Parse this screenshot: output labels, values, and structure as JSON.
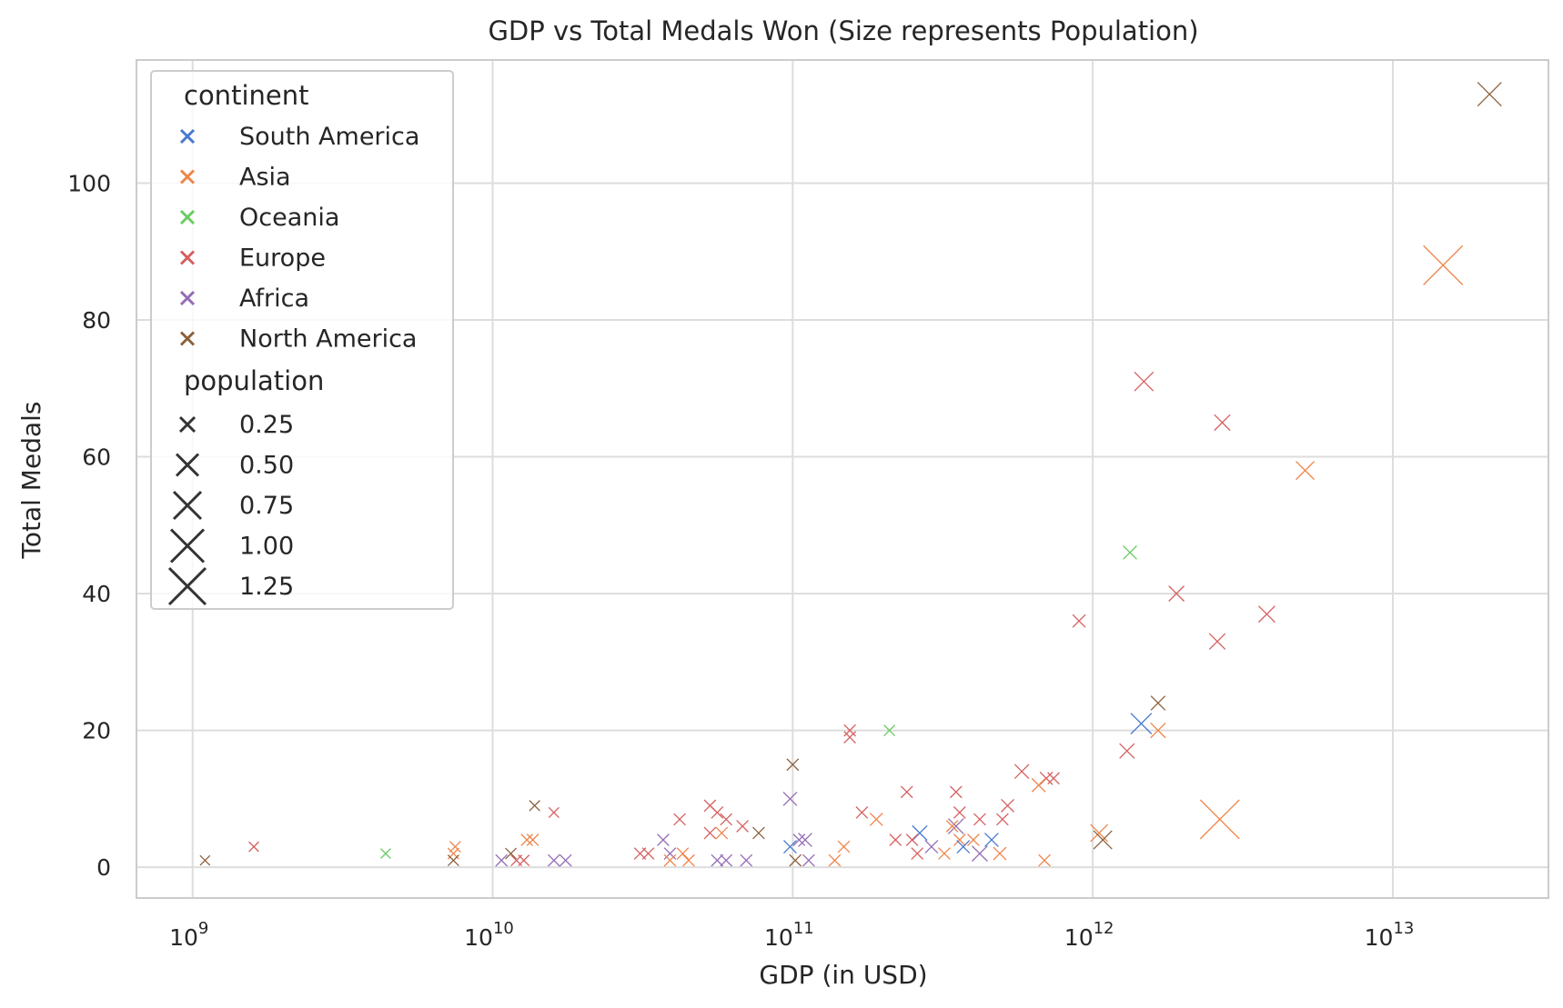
{
  "chart_data": {
    "type": "scatter",
    "title": "GDP vs Total Medals Won (Size represents Population)",
    "xlabel": "GDP (in USD)",
    "ylabel": "Total Medals",
    "xscale": "log",
    "xlim": [
      650000000.0,
      33000000000000.0
    ],
    "ylim": [
      -4.5,
      118
    ],
    "x_ticks": [
      {
        "value": 1000000000.0,
        "base": "10",
        "exp": "9"
      },
      {
        "value": 10000000000.0,
        "base": "10",
        "exp": "10"
      },
      {
        "value": 100000000000.0,
        "base": "10",
        "exp": "11"
      },
      {
        "value": 1000000000000.0,
        "base": "10",
        "exp": "12"
      },
      {
        "value": 10000000000000.0,
        "base": "10",
        "exp": "13"
      }
    ],
    "y_ticks": [
      "0",
      "20",
      "40",
      "60",
      "80",
      "100"
    ],
    "grid": true,
    "marker": "x",
    "legend_placement": "upper-left",
    "hue_legend_title": "continent",
    "size_legend_title": "population",
    "continent_colors": {
      "South America": "#4878d0",
      "Asia": "#ee854a",
      "Oceania": "#6acc64",
      "Europe": "#d65f5f",
      "Africa": "#956cb4",
      "North America": "#8c613c"
    },
    "continents": [
      "South America",
      "Asia",
      "Oceania",
      "Europe",
      "Africa",
      "North America"
    ],
    "size_legend": [
      {
        "label": "0.25",
        "value": 0.25
      },
      {
        "label": "0.50",
        "value": 0.5
      },
      {
        "label": "0.75",
        "value": 0.75
      },
      {
        "label": "1.00",
        "value": 1.0
      },
      {
        "label": "1.25",
        "value": 1.25
      }
    ],
    "points": [
      {
        "gdp": 21000000000000.0,
        "medals": 113,
        "continent": "North America",
        "population": 0.33
      },
      {
        "gdp": 14700000000000.0,
        "medals": 88,
        "continent": "Asia",
        "population": 1.4
      },
      {
        "gdp": 1480000000000.0,
        "medals": 71,
        "continent": "Europe",
        "population": 0.15
      },
      {
        "gdp": 2700000000000.0,
        "medals": 65,
        "continent": "Europe",
        "population": 0.07
      },
      {
        "gdp": 5100000000000.0,
        "medals": 58,
        "continent": "Asia",
        "population": 0.13
      },
      {
        "gdp": 1330000000000.0,
        "medals": 46,
        "continent": "Oceania",
        "population": 0.03
      },
      {
        "gdp": 1900000000000.0,
        "medals": 40,
        "continent": "Europe",
        "population": 0.06
      },
      {
        "gdp": 3800000000000.0,
        "medals": 37,
        "continent": "Europe",
        "population": 0.08
      },
      {
        "gdp": 900000000000.0,
        "medals": 36,
        "continent": "Europe",
        "population": 0.02
      },
      {
        "gdp": 2600000000000.0,
        "medals": 33,
        "continent": "Europe",
        "population": 0.07
      },
      {
        "gdp": 1650000000000.0,
        "medals": 24,
        "continent": "North America",
        "population": 0.04
      },
      {
        "gdp": 1450000000000.0,
        "medals": 21,
        "continent": "South America",
        "population": 0.21
      },
      {
        "gdp": 1650000000000.0,
        "medals": 20,
        "continent": "Asia",
        "population": 0.05
      },
      {
        "gdp": 1300000000000.0,
        "medals": 17,
        "continent": "Europe",
        "population": 0.05
      },
      {
        "gdp": 210000000000.0,
        "medals": 20,
        "continent": "Oceania",
        "population": 0.005
      },
      {
        "gdp": 155000000000.0,
        "medals": 20,
        "continent": "Europe",
        "population": 0.01
      },
      {
        "gdp": 155000000000.0,
        "medals": 19,
        "continent": "Europe",
        "population": 0.01
      },
      {
        "gdp": 100000000000.0,
        "medals": 15,
        "continent": "North America",
        "population": 0.01
      },
      {
        "gdp": 580000000000.0,
        "medals": 14,
        "continent": "Europe",
        "population": 0.04
      },
      {
        "gdp": 700000000000.0,
        "medals": 13,
        "continent": "Europe",
        "population": 0.02
      },
      {
        "gdp": 740000000000.0,
        "medals": 13,
        "continent": "Europe",
        "population": 0.01
      },
      {
        "gdp": 660000000000.0,
        "medals": 12,
        "continent": "Asia",
        "population": 0.03
      },
      {
        "gdp": 240000000000.0,
        "medals": 11,
        "continent": "Europe",
        "population": 0.01
      },
      {
        "gdp": 350000000000.0,
        "medals": 11,
        "continent": "Europe",
        "population": 0.01
      },
      {
        "gdp": 98000000000.0,
        "medals": 10,
        "continent": "Africa",
        "population": 0.03
      },
      {
        "gdp": 13800000000.0,
        "medals": 9,
        "continent": "North America",
        "population": 0.003
      },
      {
        "gdp": 53000000000.0,
        "medals": 9,
        "continent": "Europe",
        "population": 0.01
      },
      {
        "gdp": 520000000000.0,
        "medals": 9,
        "continent": "Europe",
        "population": 0.02
      },
      {
        "gdp": 16000000000.0,
        "medals": 8,
        "continent": "Europe",
        "population": 0.002
      },
      {
        "gdp": 56000000000.0,
        "medals": 8,
        "continent": "Europe",
        "population": 0.01
      },
      {
        "gdp": 170000000000.0,
        "medals": 8,
        "continent": "Europe",
        "population": 0.01
      },
      {
        "gdp": 360000000000.0,
        "medals": 8,
        "continent": "Europe",
        "population": 0.01
      },
      {
        "gdp": 42000000000.0,
        "medals": 7,
        "continent": "Europe",
        "population": 0.01
      },
      {
        "gdp": 60000000000.0,
        "medals": 7,
        "continent": "Europe",
        "population": 0.01
      },
      {
        "gdp": 190000000000.0,
        "medals": 7,
        "continent": "Asia",
        "population": 0.02
      },
      {
        "gdp": 420000000000.0,
        "medals": 7,
        "continent": "Europe",
        "population": 0.01
      },
      {
        "gdp": 500000000000.0,
        "medals": 7,
        "continent": "Europe",
        "population": 0.01
      },
      {
        "gdp": 68000000000.0,
        "medals": 6,
        "continent": "Europe",
        "population": 0.01
      },
      {
        "gdp": 350000000000.0,
        "medals": 6,
        "continent": "Africa",
        "population": 0.06
      },
      {
        "gdp": 340000000000.0,
        "medals": 6,
        "continent": "Asia",
        "population": 0.01
      },
      {
        "gdp": 53000000000.0,
        "medals": 5,
        "continent": "Europe",
        "population": 0.01
      },
      {
        "gdp": 58000000000.0,
        "medals": 5,
        "continent": "Asia",
        "population": 0.01
      },
      {
        "gdp": 77000000000.0,
        "medals": 5,
        "continent": "North America",
        "population": 0.01
      },
      {
        "gdp": 265000000000.0,
        "medals": 5,
        "continent": "South America",
        "population": 0.05
      },
      {
        "gdp": 1050000000000.0,
        "medals": 5,
        "continent": "Asia",
        "population": 0.1
      },
      {
        "gdp": 13000000000.0,
        "medals": 4,
        "continent": "Asia",
        "population": 0.01
      },
      {
        "gdp": 13600000000.0,
        "medals": 4,
        "continent": "Asia",
        "population": 0.01
      },
      {
        "gdp": 37000000000.0,
        "medals": 4,
        "continent": "Africa",
        "population": 0.01
      },
      {
        "gdp": 105000000000.0,
        "medals": 4,
        "continent": "Africa",
        "population": 0.01
      },
      {
        "gdp": 110000000000.0,
        "medals": 4,
        "continent": "Africa",
        "population": 0.03
      },
      {
        "gdp": 220000000000.0,
        "medals": 4,
        "continent": "Europe",
        "population": 0.01
      },
      {
        "gdp": 250000000000.0,
        "medals": 4,
        "continent": "Europe",
        "population": 0.01
      },
      {
        "gdp": 360000000000.0,
        "medals": 4,
        "continent": "Asia",
        "population": 0.01
      },
      {
        "gdp": 400000000000.0,
        "medals": 4,
        "continent": "Asia",
        "population": 0.01
      },
      {
        "gdp": 460000000000.0,
        "medals": 4,
        "continent": "South America",
        "population": 0.03
      },
      {
        "gdp": 1080000000000.0,
        "medals": 4,
        "continent": "North America",
        "population": 0.13
      },
      {
        "gdp": 7500000000.0,
        "medals": 3,
        "continent": "Asia",
        "population": 0.005
      },
      {
        "gdp": 1600000000.0,
        "medals": 3,
        "continent": "Europe",
        "population": 0.001
      },
      {
        "gdp": 148000000000.0,
        "medals": 3,
        "continent": "Asia",
        "population": 0.01
      },
      {
        "gdp": 98000000000.0,
        "medals": 3,
        "continent": "South America",
        "population": 0.02
      },
      {
        "gdp": 290000000000.0,
        "medals": 3,
        "continent": "Africa",
        "population": 0.02
      },
      {
        "gdp": 370000000000.0,
        "medals": 3,
        "continent": "South America",
        "population": 0.02
      },
      {
        "gdp": 4400000000.0,
        "medals": 2,
        "continent": "Oceania",
        "population": 0.001
      },
      {
        "gdp": 7400000000.0,
        "medals": 2,
        "continent": "Asia",
        "population": 0.005
      },
      {
        "gdp": 11500000000.0,
        "medals": 2,
        "continent": "North America",
        "population": 0.005
      },
      {
        "gdp": 31000000000.0,
        "medals": 2,
        "continent": "Europe",
        "population": 0.01
      },
      {
        "gdp": 33000000000.0,
        "medals": 2,
        "continent": "Europe",
        "population": 0.01
      },
      {
        "gdp": 39000000000.0,
        "medals": 2,
        "continent": "Africa",
        "population": 0.01
      },
      {
        "gdp": 43000000000.0,
        "medals": 2,
        "continent": "Asia",
        "population": 0.01
      },
      {
        "gdp": 260000000000.0,
        "medals": 2,
        "continent": "Europe",
        "population": 0.01
      },
      {
        "gdp": 320000000000.0,
        "medals": 2,
        "continent": "Asia",
        "population": 0.01
      },
      {
        "gdp": 420000000000.0,
        "medals": 2,
        "continent": "Africa",
        "population": 0.06
      },
      {
        "gdp": 490000000000.0,
        "medals": 2,
        "continent": "Asia",
        "population": 0.02
      },
      {
        "gdp": 1100000000.0,
        "medals": 1,
        "continent": "North America",
        "population": 0.001
      },
      {
        "gdp": 7400000000.0,
        "medals": 1,
        "continent": "North America",
        "population": 0.005
      },
      {
        "gdp": 10700000000.0,
        "medals": 1,
        "continent": "Africa",
        "population": 0.01
      },
      {
        "gdp": 12000000000.0,
        "medals": 1,
        "continent": "Europe",
        "population": 0.005
      },
      {
        "gdp": 12700000000.0,
        "medals": 1,
        "continent": "Europe",
        "population": 0.005
      },
      {
        "gdp": 16000000000.0,
        "medals": 1,
        "continent": "Africa",
        "population": 0.01
      },
      {
        "gdp": 17500000000.0,
        "medals": 1,
        "continent": "Africa",
        "population": 0.01
      },
      {
        "gdp": 39000000000.0,
        "medals": 1,
        "continent": "Asia",
        "population": 0.01
      },
      {
        "gdp": 45000000000.0,
        "medals": 1,
        "continent": "Asia",
        "population": 0.01
      },
      {
        "gdp": 56000000000.0,
        "medals": 1,
        "continent": "Africa",
        "population": 0.01
      },
      {
        "gdp": 60000000000.0,
        "medals": 1,
        "continent": "Africa",
        "population": 0.01
      },
      {
        "gdp": 70000000000.0,
        "medals": 1,
        "continent": "Africa",
        "population": 0.01
      },
      {
        "gdp": 102000000000.0,
        "medals": 1,
        "continent": "North America",
        "population": 0.01
      },
      {
        "gdp": 113000000000.0,
        "medals": 1,
        "continent": "Africa",
        "population": 0.01
      },
      {
        "gdp": 138000000000.0,
        "medals": 1,
        "continent": "Asia",
        "population": 0.01
      },
      {
        "gdp": 690000000000.0,
        "medals": 1,
        "continent": "Asia",
        "population": 0.01
      },
      {
        "gdp": 2650000000000.0,
        "medals": 7,
        "continent": "Asia",
        "population": 1.38
      }
    ]
  }
}
